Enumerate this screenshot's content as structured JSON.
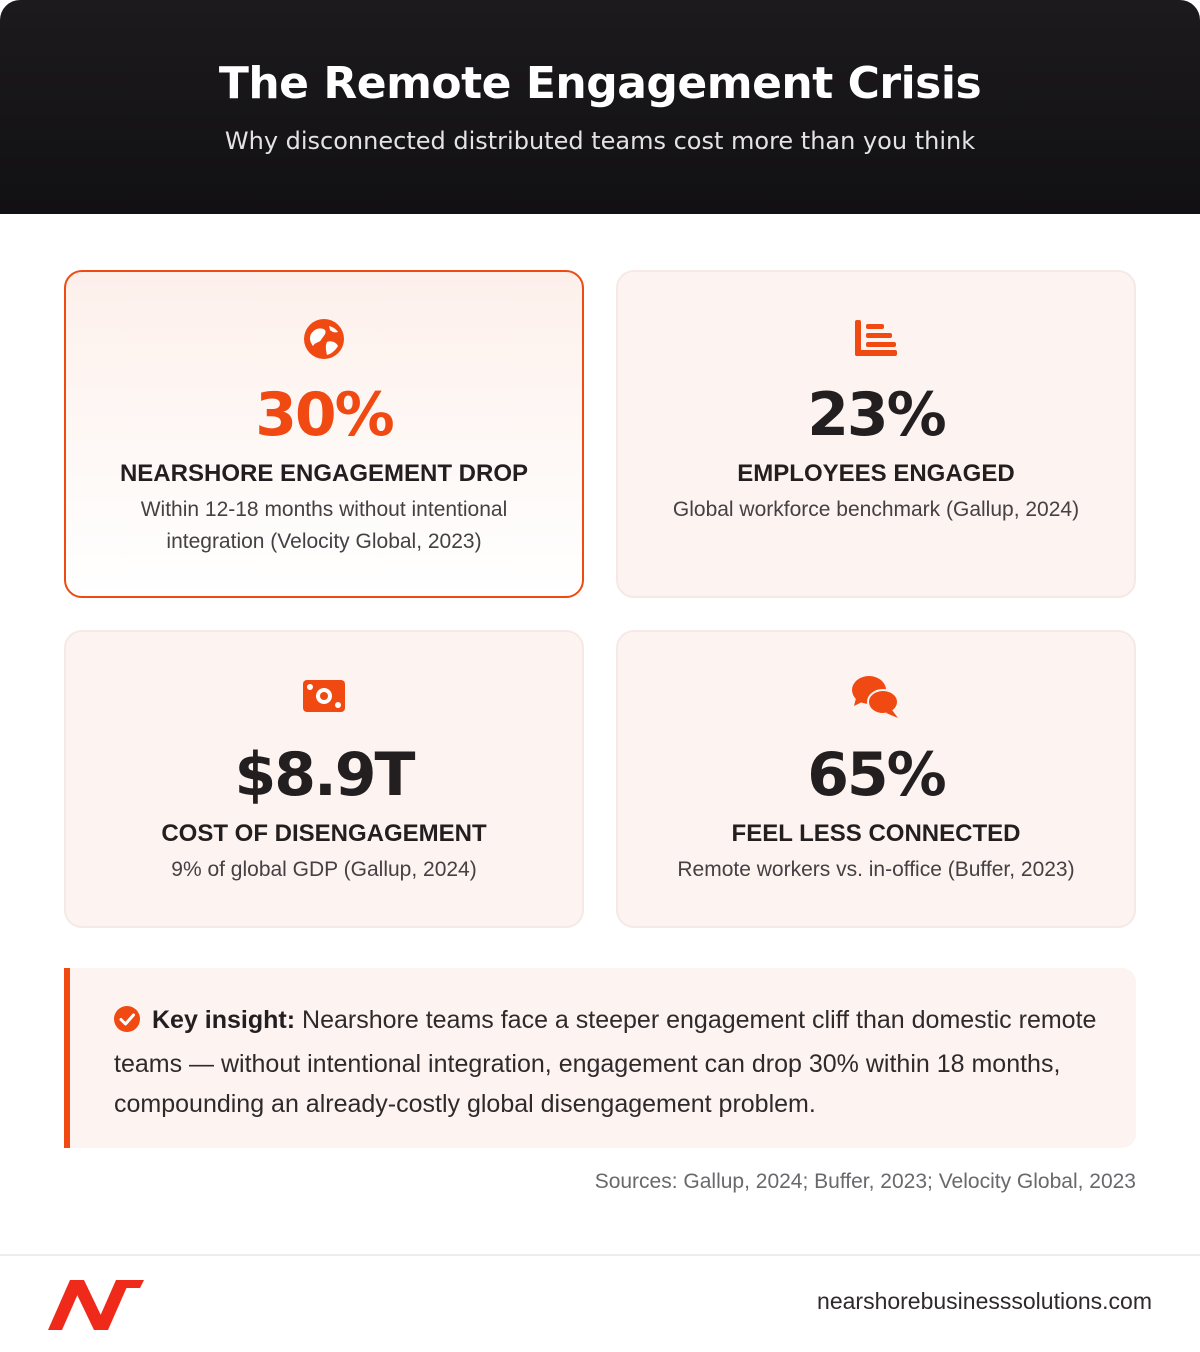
{
  "header": {
    "title": "The Remote Engagement Crisis",
    "subtitle": "Why disconnected distributed teams cost more than you think"
  },
  "cards": [
    {
      "icon": "globe-icon",
      "value": "30%",
      "label": "NEARSHORE ENGAGEMENT DROP",
      "description": "Within 12-18 months without intentional integration (Velocity Global, 2023)",
      "highlighted": true
    },
    {
      "icon": "bar-chart-icon",
      "value": "23%",
      "label": "EMPLOYEES ENGAGED",
      "description": "Global workforce benchmark (Gallup, 2024)",
      "highlighted": false
    },
    {
      "icon": "money-bill-icon",
      "value": "$8.9T",
      "label": "COST OF DISENGAGEMENT",
      "description": "9% of global GDP (Gallup, 2024)",
      "highlighted": false
    },
    {
      "icon": "chat-bubbles-icon",
      "value": "65%",
      "label": "FEEL LESS CONNECTED",
      "description": "Remote workers vs. in-office (Buffer, 2023)",
      "highlighted": false
    }
  ],
  "insight": {
    "icon": "check-circle-icon",
    "heading": "Key insight:",
    "body": "Nearshore teams face a steeper engagement cliff than domestic remote teams — without intentional integration, engagement can drop 30% within 18 months, compounding an already-costly global disengagement problem."
  },
  "sources": "Sources: Gallup, 2024; Buffer, 2023; Velocity Global, 2023",
  "footer": {
    "logo": "nearshore-logo",
    "url": "nearshorebusinesssolutions.com"
  },
  "colors": {
    "accent": "#f04a12",
    "dark": "#231f20",
    "card_bg": "#fdf3f0"
  }
}
